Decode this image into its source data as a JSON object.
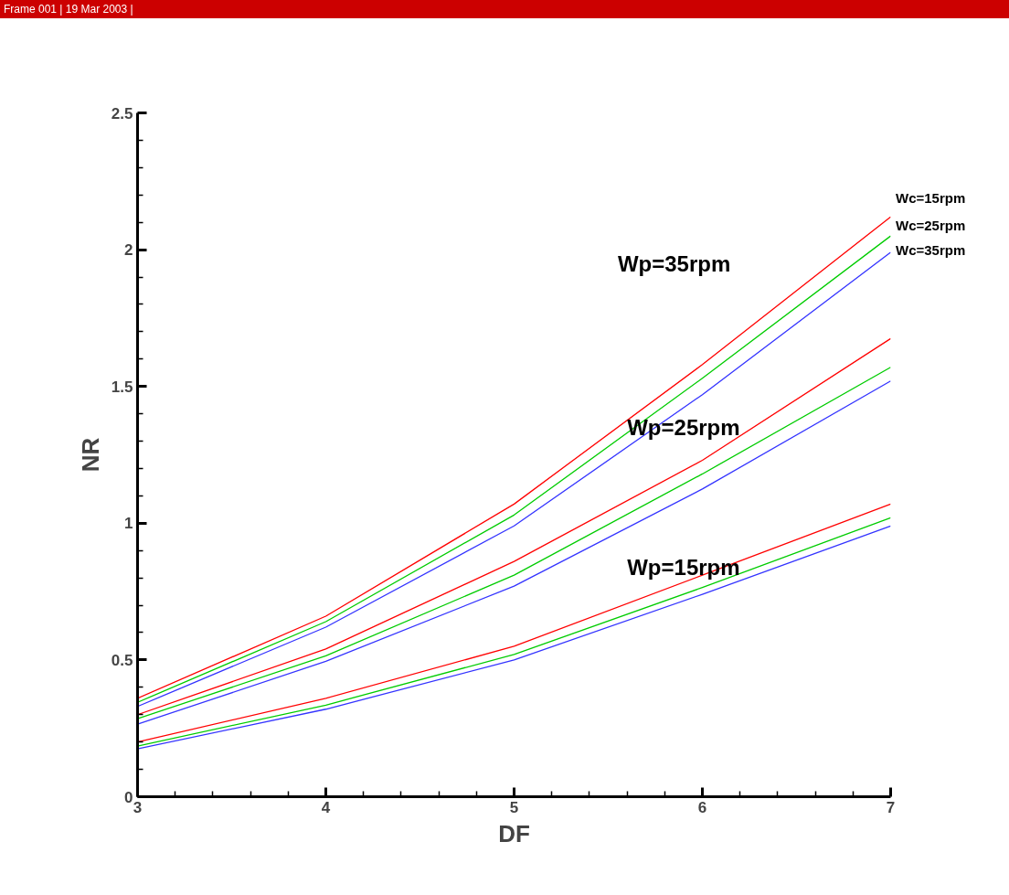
{
  "chart_data": {
    "type": "line",
    "xlabel": "DF",
    "ylabel": "NR",
    "x": [
      3,
      4,
      5,
      6,
      7
    ],
    "series": [
      {
        "name": "Wc=15rpm",
        "color": "#ff0000",
        "values": [
          0.36,
          0.66,
          1.07,
          1.58,
          2.12
        ]
      },
      {
        "name": "Wc=25rpm",
        "color": "#00cc00",
        "values": [
          0.345,
          0.64,
          1.03,
          1.53,
          2.05
        ]
      },
      {
        "name": "Wc=35rpm",
        "color": "#3333ff",
        "values": [
          0.33,
          0.62,
          0.99,
          1.47,
          1.99
        ]
      },
      {
        "color": "#ff0000",
        "values": [
          0.3,
          0.54,
          0.86,
          1.23,
          1.675
        ]
      },
      {
        "color": "#00cc00",
        "values": [
          0.285,
          0.515,
          0.81,
          1.18,
          1.57
        ]
      },
      {
        "color": "#3333ff",
        "values": [
          0.265,
          0.495,
          0.77,
          1.125,
          1.52
        ]
      },
      {
        "color": "#ff0000",
        "values": [
          0.2,
          0.36,
          0.55,
          0.81,
          1.07
        ]
      },
      {
        "color": "#00cc00",
        "values": [
          0.185,
          0.335,
          0.52,
          0.765,
          1.02
        ]
      },
      {
        "color": "#3333ff",
        "values": [
          0.175,
          0.32,
          0.5,
          0.74,
          0.99
        ]
      }
    ],
    "annotations": [
      "Frame 001 | 19 Mar 2003 |",
      "Wp=35rpm",
      "Wp=25rpm",
      "Wp=15rpm"
    ],
    "xlim": [
      3,
      7
    ],
    "ylim": [
      0,
      2.5
    ],
    "xticks": [
      3,
      {
        "value": 3.2,
        "label": null
      },
      {
        "value": 3.4,
        "label": null
      },
      {
        "value": 3.6,
        "label": null
      },
      {
        "value": 3.8,
        "label": null
      },
      4,
      {
        "value": 4.2,
        "label": null
      },
      {
        "value": 4.4,
        "label": null
      },
      {
        "value": 4.6,
        "label": null
      },
      {
        "value": 4.8,
        "label": null
      },
      5,
      {
        "value": 5.2,
        "label": null
      },
      {
        "value": 5.4,
        "label": null
      },
      {
        "value": 5.6,
        "label": null
      },
      {
        "value": 5.8,
        "label": null
      },
      6,
      {
        "value": 6.2,
        "label": null
      },
      {
        "value": 6.4,
        "label": null
      },
      {
        "value": 6.6,
        "label": null
      },
      {
        "value": 6.8,
        "label": null
      },
      7
    ],
    "yticks": [
      0,
      {
        "value": 0.1,
        "label": null
      },
      {
        "value": 0.2,
        "label": null
      },
      {
        "value": 0.3,
        "label": null
      },
      {
        "value": 0.4,
        "label": null
      },
      0.5,
      {
        "value": 0.6,
        "label": null
      },
      {
        "value": 0.7,
        "label": null
      },
      {
        "value": 0.8,
        "label": null
      },
      {
        "value": 0.9,
        "label": null
      },
      1,
      {
        "value": 1.1,
        "label": null
      },
      {
        "value": 1.2,
        "label": null
      },
      {
        "value": 1.3,
        "label": null
      },
      {
        "value": 1.4,
        "label": null
      },
      1.5,
      {
        "value": 1.6,
        "label": null
      },
      {
        "value": 1.7,
        "label": null
      },
      {
        "value": 1.8,
        "label": null
      },
      {
        "value": 1.9,
        "label": null
      },
      2,
      {
        "value": 2.1,
        "label": null
      },
      {
        "value": 2.2,
        "label": null
      },
      {
        "value": 2.3,
        "label": null
      },
      {
        "value": 2.4,
        "label": null
      },
      2.5
    ],
    "grid": false,
    "marker": "none",
    "line_style": "solid"
  }
}
